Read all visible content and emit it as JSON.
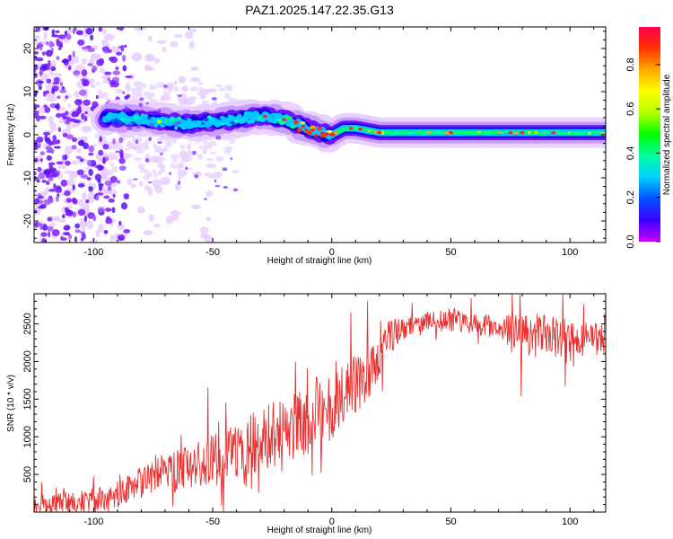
{
  "figure_title": "PAZ1.2025.147.22.35.G13",
  "chart_data": [
    {
      "type": "heatmap",
      "title": "PAZ1.2025.147.22.35.G13",
      "xlabel": "Height of straight line (km)",
      "ylabel": "Frequency (Hz)",
      "colorbar_label": "Normalized spectral amplitude",
      "xlim": [
        -125,
        115
      ],
      "ylim": [
        -25,
        25
      ],
      "xticks": [
        -100,
        -50,
        0,
        50,
        100
      ],
      "yticks": [
        -20,
        -10,
        0,
        10,
        20
      ],
      "colorbar_lim": [
        0.0,
        0.97
      ],
      "colorbar_ticks": [
        0.0,
        0.2,
        0.4,
        0.6,
        0.8
      ],
      "colormap": [
        "#c800ff",
        "#3c00ff",
        "#0050ff",
        "#00d2ff",
        "#00ffa0",
        "#00ff00",
        "#b4ff00",
        "#ffff00",
        "#ffaa00",
        "#ff3200",
        "#ff0050"
      ],
      "ridge_frequency": {
        "x": [
          -90,
          -80,
          -70,
          -60,
          -50,
          -40,
          -30,
          -20,
          -10,
          -5,
          0,
          5,
          10,
          20,
          30,
          40,
          50,
          60,
          70,
          80,
          90,
          100,
          110,
          115
        ],
        "y": [
          4,
          3.5,
          3,
          2.5,
          3,
          3.5,
          4.5,
          3.5,
          1.5,
          0.5,
          0.0,
          1.5,
          1.5,
          0.5,
          0.5,
          0.5,
          0.5,
          0.5,
          0.5,
          0.5,
          0.5,
          0.5,
          0.5,
          0.5
        ]
      }
    },
    {
      "type": "line",
      "xlabel": "Height of straight line (km)",
      "ylabel": "SNR (10 * v/v)",
      "xlim": [
        -125,
        115
      ],
      "ylim": [
        0,
        2900
      ],
      "xticks": [
        -100,
        -50,
        0,
        50,
        100
      ],
      "yticks": [
        500,
        1000,
        1500,
        2000,
        2500
      ],
      "color": "#e83030",
      "trend": {
        "x": [
          -125,
          -110,
          -100,
          -90,
          -80,
          -70,
          -60,
          -50,
          -40,
          -30,
          -20,
          -10,
          0,
          5,
          10,
          15,
          20,
          25,
          30,
          40,
          50,
          60,
          70,
          80,
          90,
          100,
          110,
          115
        ],
        "y": [
          120,
          130,
          160,
          250,
          380,
          500,
          600,
          700,
          800,
          950,
          1100,
          1250,
          1450,
          1600,
          1700,
          1750,
          2100,
          2350,
          2450,
          2550,
          2550,
          2500,
          2450,
          2350,
          2350,
          2300,
          2300,
          2300
        ]
      },
      "noise_amplitude": {
        "x": [
          -125,
          -100,
          -60,
          -40,
          -20,
          0,
          20,
          30,
          70,
          80,
          100,
          115
        ],
        "y": [
          120,
          150,
          300,
          400,
          450,
          500,
          300,
          150,
          150,
          300,
          250,
          200
        ]
      },
      "spikes": [
        {
          "x": -52,
          "y": 1650
        },
        {
          "x": 8,
          "y": 2650
        },
        {
          "x": 15,
          "y": 2800
        },
        {
          "x": 79,
          "y": 2880
        },
        {
          "x": 79.5,
          "y": 1540
        },
        {
          "x": 97,
          "y": 2900
        },
        {
          "x": 98,
          "y": 1680
        }
      ]
    }
  ]
}
